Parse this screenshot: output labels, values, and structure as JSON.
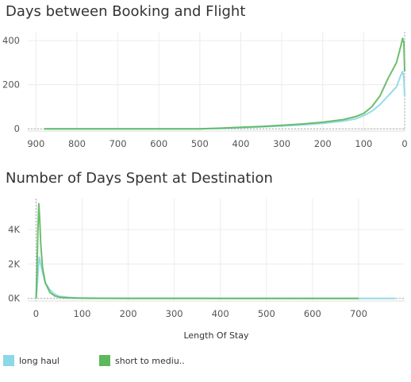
{
  "colors": {
    "long_haul": "#8bd8e6",
    "short_to_medium": "#5cb85c",
    "grid": "#ececec",
    "zero_line": "#aaaaaa"
  },
  "legend": {
    "items": [
      {
        "label": "long haul",
        "color": "#8bd8e6"
      },
      {
        "label": "short to mediu..",
        "color": "#5cb85c"
      }
    ]
  },
  "chart_data": [
    {
      "type": "line",
      "title": "Days between Booking and Flight",
      "xlabel": "",
      "ylabel": "",
      "x_reversed": true,
      "xlim": [
        0,
        920
      ],
      "ylim": [
        -10,
        440
      ],
      "x_ticks": [
        900,
        800,
        700,
        600,
        500,
        400,
        300,
        200,
        100,
        0
      ],
      "y_ticks": [
        0,
        200,
        400
      ],
      "grid": true,
      "series": [
        {
          "name": "long haul",
          "x": [
            880,
            700,
            500,
            450,
            400,
            350,
            300,
            250,
            200,
            150,
            120,
            100,
            80,
            60,
            40,
            20,
            10,
            5,
            2,
            0
          ],
          "y": [
            0,
            0,
            0,
            2,
            5,
            9,
            13,
            18,
            25,
            35,
            45,
            60,
            80,
            110,
            150,
            190,
            240,
            260,
            230,
            150
          ]
        },
        {
          "name": "short to mediu..",
          "x": [
            880,
            700,
            500,
            450,
            400,
            350,
            300,
            250,
            200,
            150,
            120,
            100,
            80,
            60,
            40,
            20,
            10,
            5,
            2,
            0
          ],
          "y": [
            0,
            0,
            0,
            3,
            7,
            11,
            16,
            22,
            30,
            42,
            55,
            70,
            100,
            150,
            230,
            300,
            370,
            410,
            390,
            260
          ]
        }
      ]
    },
    {
      "type": "line",
      "title": "Number of Days Spent at Destination",
      "xlabel": "Length Of Stay",
      "ylabel": "",
      "xlim": [
        -18,
        800
      ],
      "ylim": [
        -150,
        5800
      ],
      "x_ticks": [
        0,
        100,
        200,
        300,
        400,
        500,
        600,
        700
      ],
      "y_ticks": [
        0,
        2000,
        4000
      ],
      "y_tick_labels": [
        "0K",
        "2K",
        "4K"
      ],
      "grid": true,
      "series": [
        {
          "name": "long haul",
          "x": [
            0,
            3,
            5,
            7,
            10,
            14,
            20,
            30,
            40,
            50,
            70,
            90,
            120,
            200,
            400,
            600,
            780
          ],
          "y": [
            0,
            900,
            1800,
            2400,
            2000,
            1500,
            900,
            500,
            250,
            120,
            60,
            30,
            15,
            8,
            3,
            2,
            0
          ]
        },
        {
          "name": "short to mediu..",
          "x": [
            0,
            2,
            4,
            6,
            8,
            10,
            14,
            20,
            30,
            40,
            50,
            70,
            90,
            120,
            200,
            400,
            700
          ],
          "y": [
            0,
            1500,
            4000,
            5500,
            4600,
            3200,
            1800,
            900,
            350,
            150,
            70,
            30,
            15,
            6,
            3,
            1,
            0
          ]
        }
      ]
    }
  ]
}
